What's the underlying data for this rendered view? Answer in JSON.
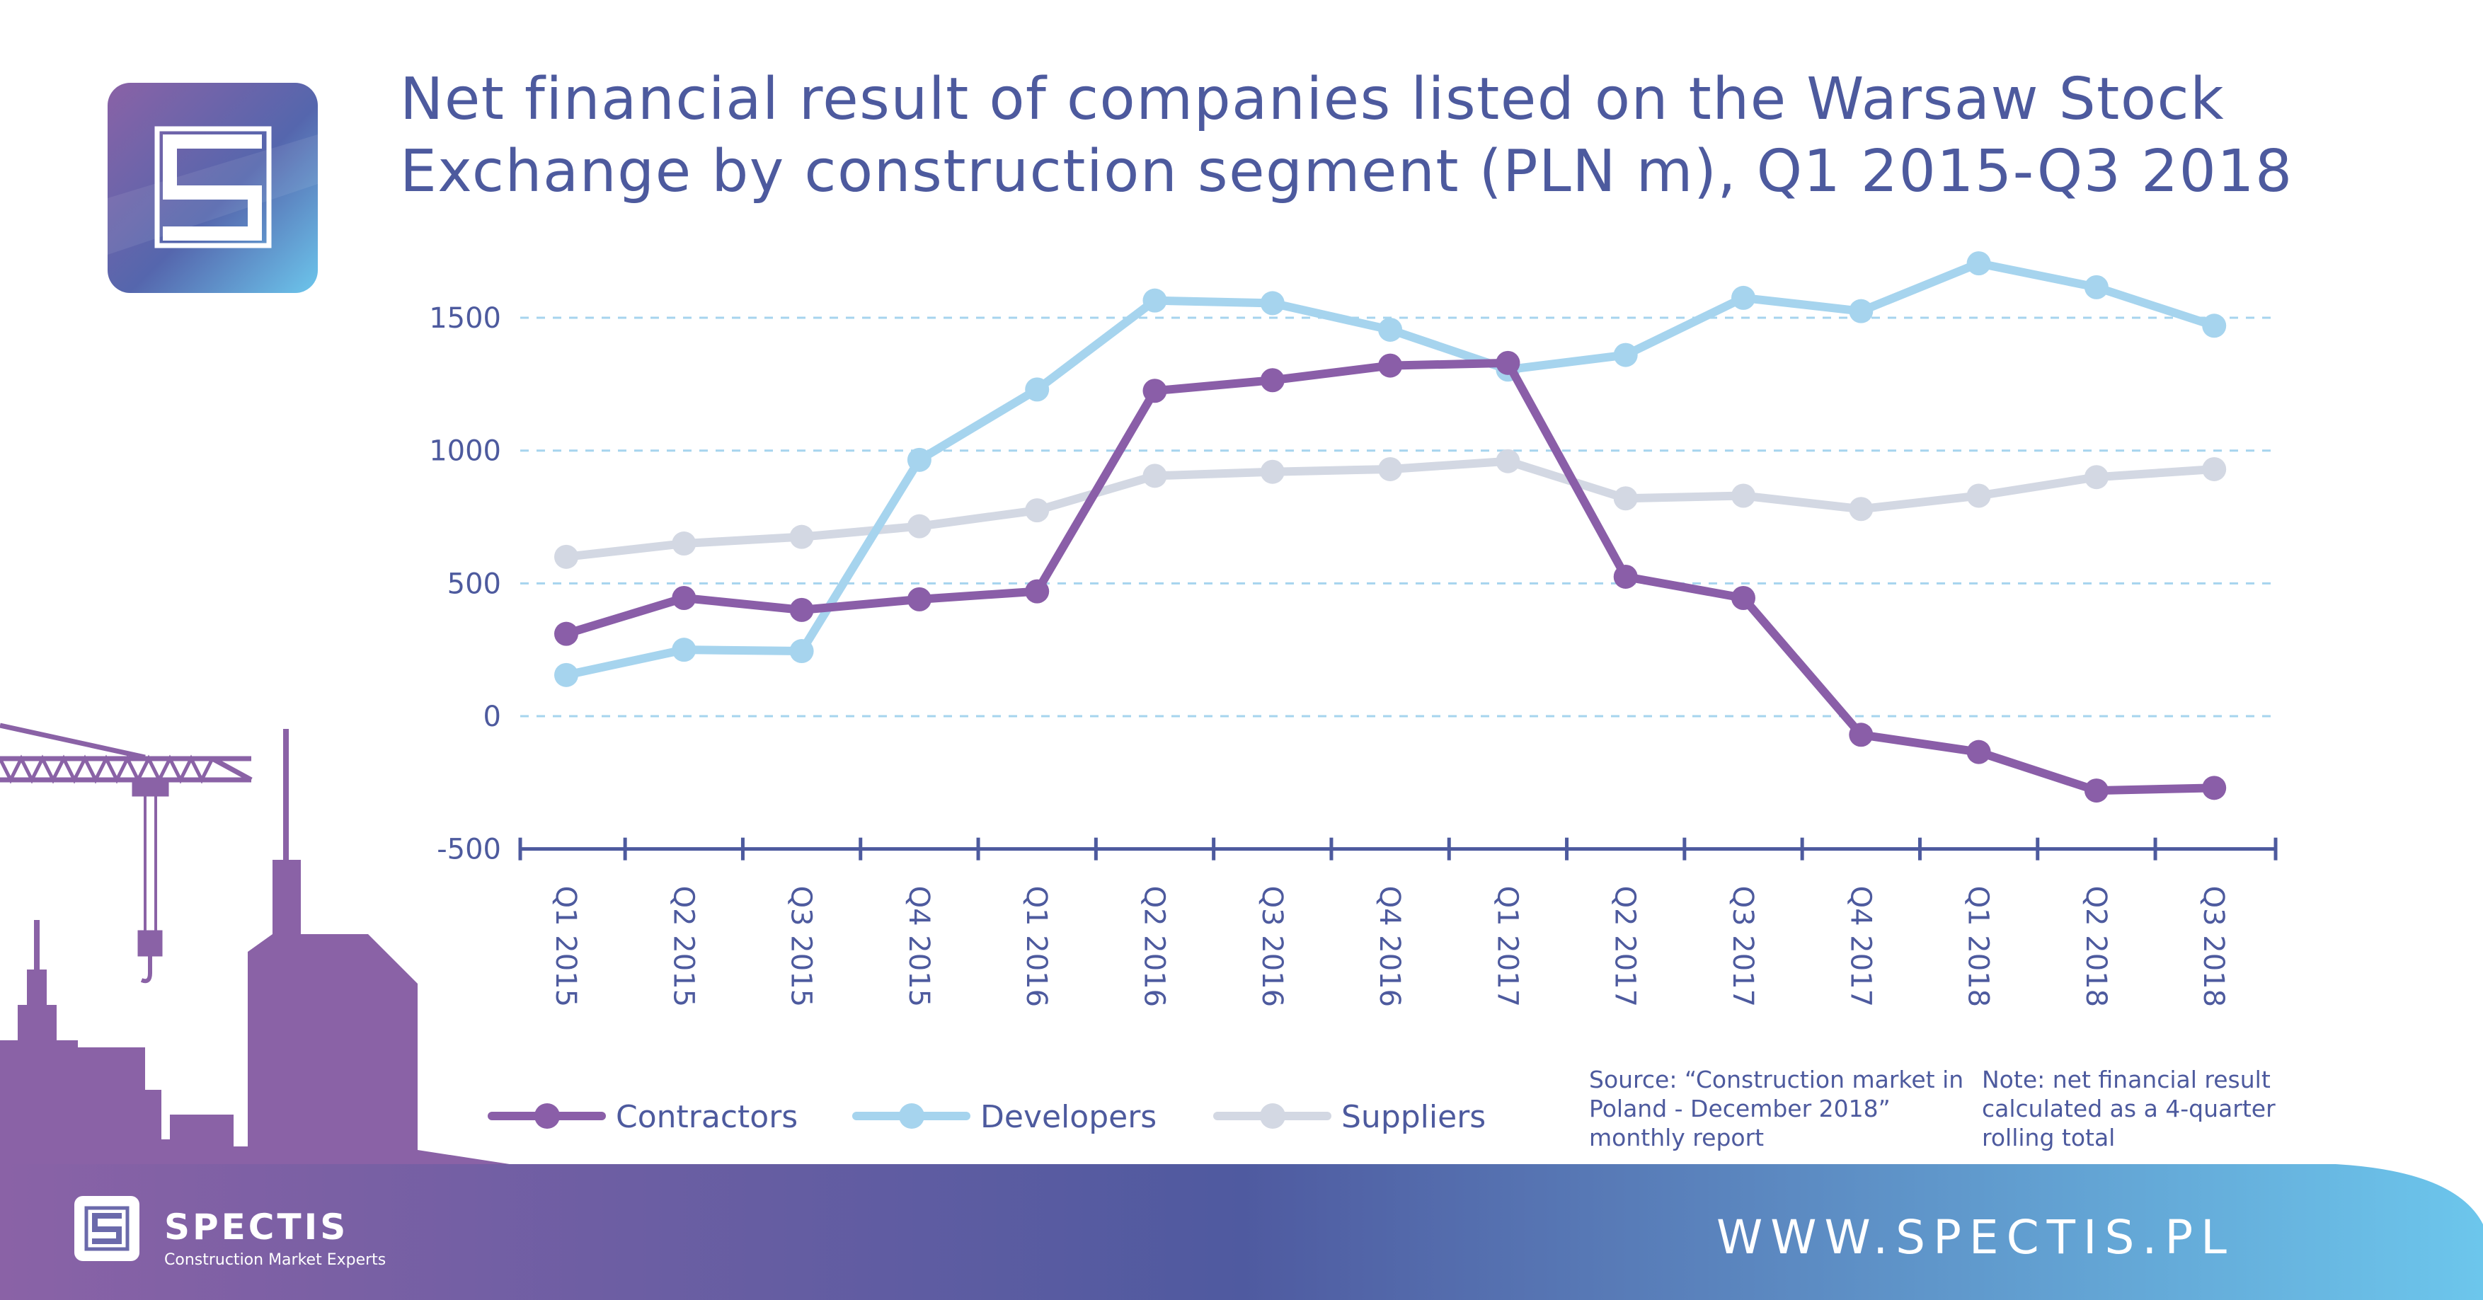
{
  "title_lines": [
    "Net financial result of companies listed on the Warsaw Stock",
    "Exchange by construction segment (PLN m), Q1 2015-Q3 2018"
  ],
  "notes": {
    "source": "Source: “Construction market in Poland - December 2018” monthly report",
    "calculation": "Note: net financial result calculated as a 4-quarter rolling total"
  },
  "footer": {
    "url": "WWW.SPECTIS.PL",
    "brand_name": "SPECTIS",
    "brand_tagline": "Construction Market Experts"
  },
  "icons": [
    "spectis-logo-icon",
    "crane-icon",
    "city-skyline-icon"
  ],
  "colors": {
    "title": "#4d5a9e",
    "contractors": "#8a5ea8",
    "developers": "#a6d4ee",
    "suppliers": "#d3d8e3",
    "gridline": "#a6d4ee",
    "axis": "#4d5a9e",
    "footer_start": "#8a62a6",
    "footer_mid": "#4f5aa0",
    "footer_end": "#6cc6ec"
  },
  "chart_data": {
    "type": "line",
    "categories": [
      "Q1 2015",
      "Q2 2015",
      "Q3 2015",
      "Q4 2015",
      "Q1 2016",
      "Q2 2016",
      "Q3 2016",
      "Q4 2016",
      "Q1 2017",
      "Q2 2017",
      "Q3 2017",
      "Q4 2017",
      "Q1 2018",
      "Q2 2018",
      "Q3 2018"
    ],
    "yticks": [
      -500,
      0,
      500,
      1000,
      1500
    ],
    "ylim": [
      -500,
      1600
    ],
    "grid": "horizontal dashed",
    "legend_position": "bottom",
    "series": [
      {
        "name": "Contractors",
        "color": "#8a5ea8",
        "values": [
          310,
          445,
          400,
          440,
          470,
          1225,
          1265,
          1320,
          1330,
          525,
          445,
          -70,
          -135,
          -280,
          -270
        ]
      },
      {
        "name": "Developers",
        "color": "#a6d4ee",
        "values": [
          155,
          250,
          245,
          965,
          1230,
          1565,
          1555,
          1455,
          1305,
          1360,
          1575,
          1525,
          1705,
          1615,
          1470
        ]
      },
      {
        "name": "Suppliers",
        "color": "#d3d8e3",
        "values": [
          600,
          650,
          675,
          715,
          775,
          905,
          920,
          930,
          960,
          820,
          830,
          780,
          830,
          900,
          930
        ]
      }
    ]
  }
}
